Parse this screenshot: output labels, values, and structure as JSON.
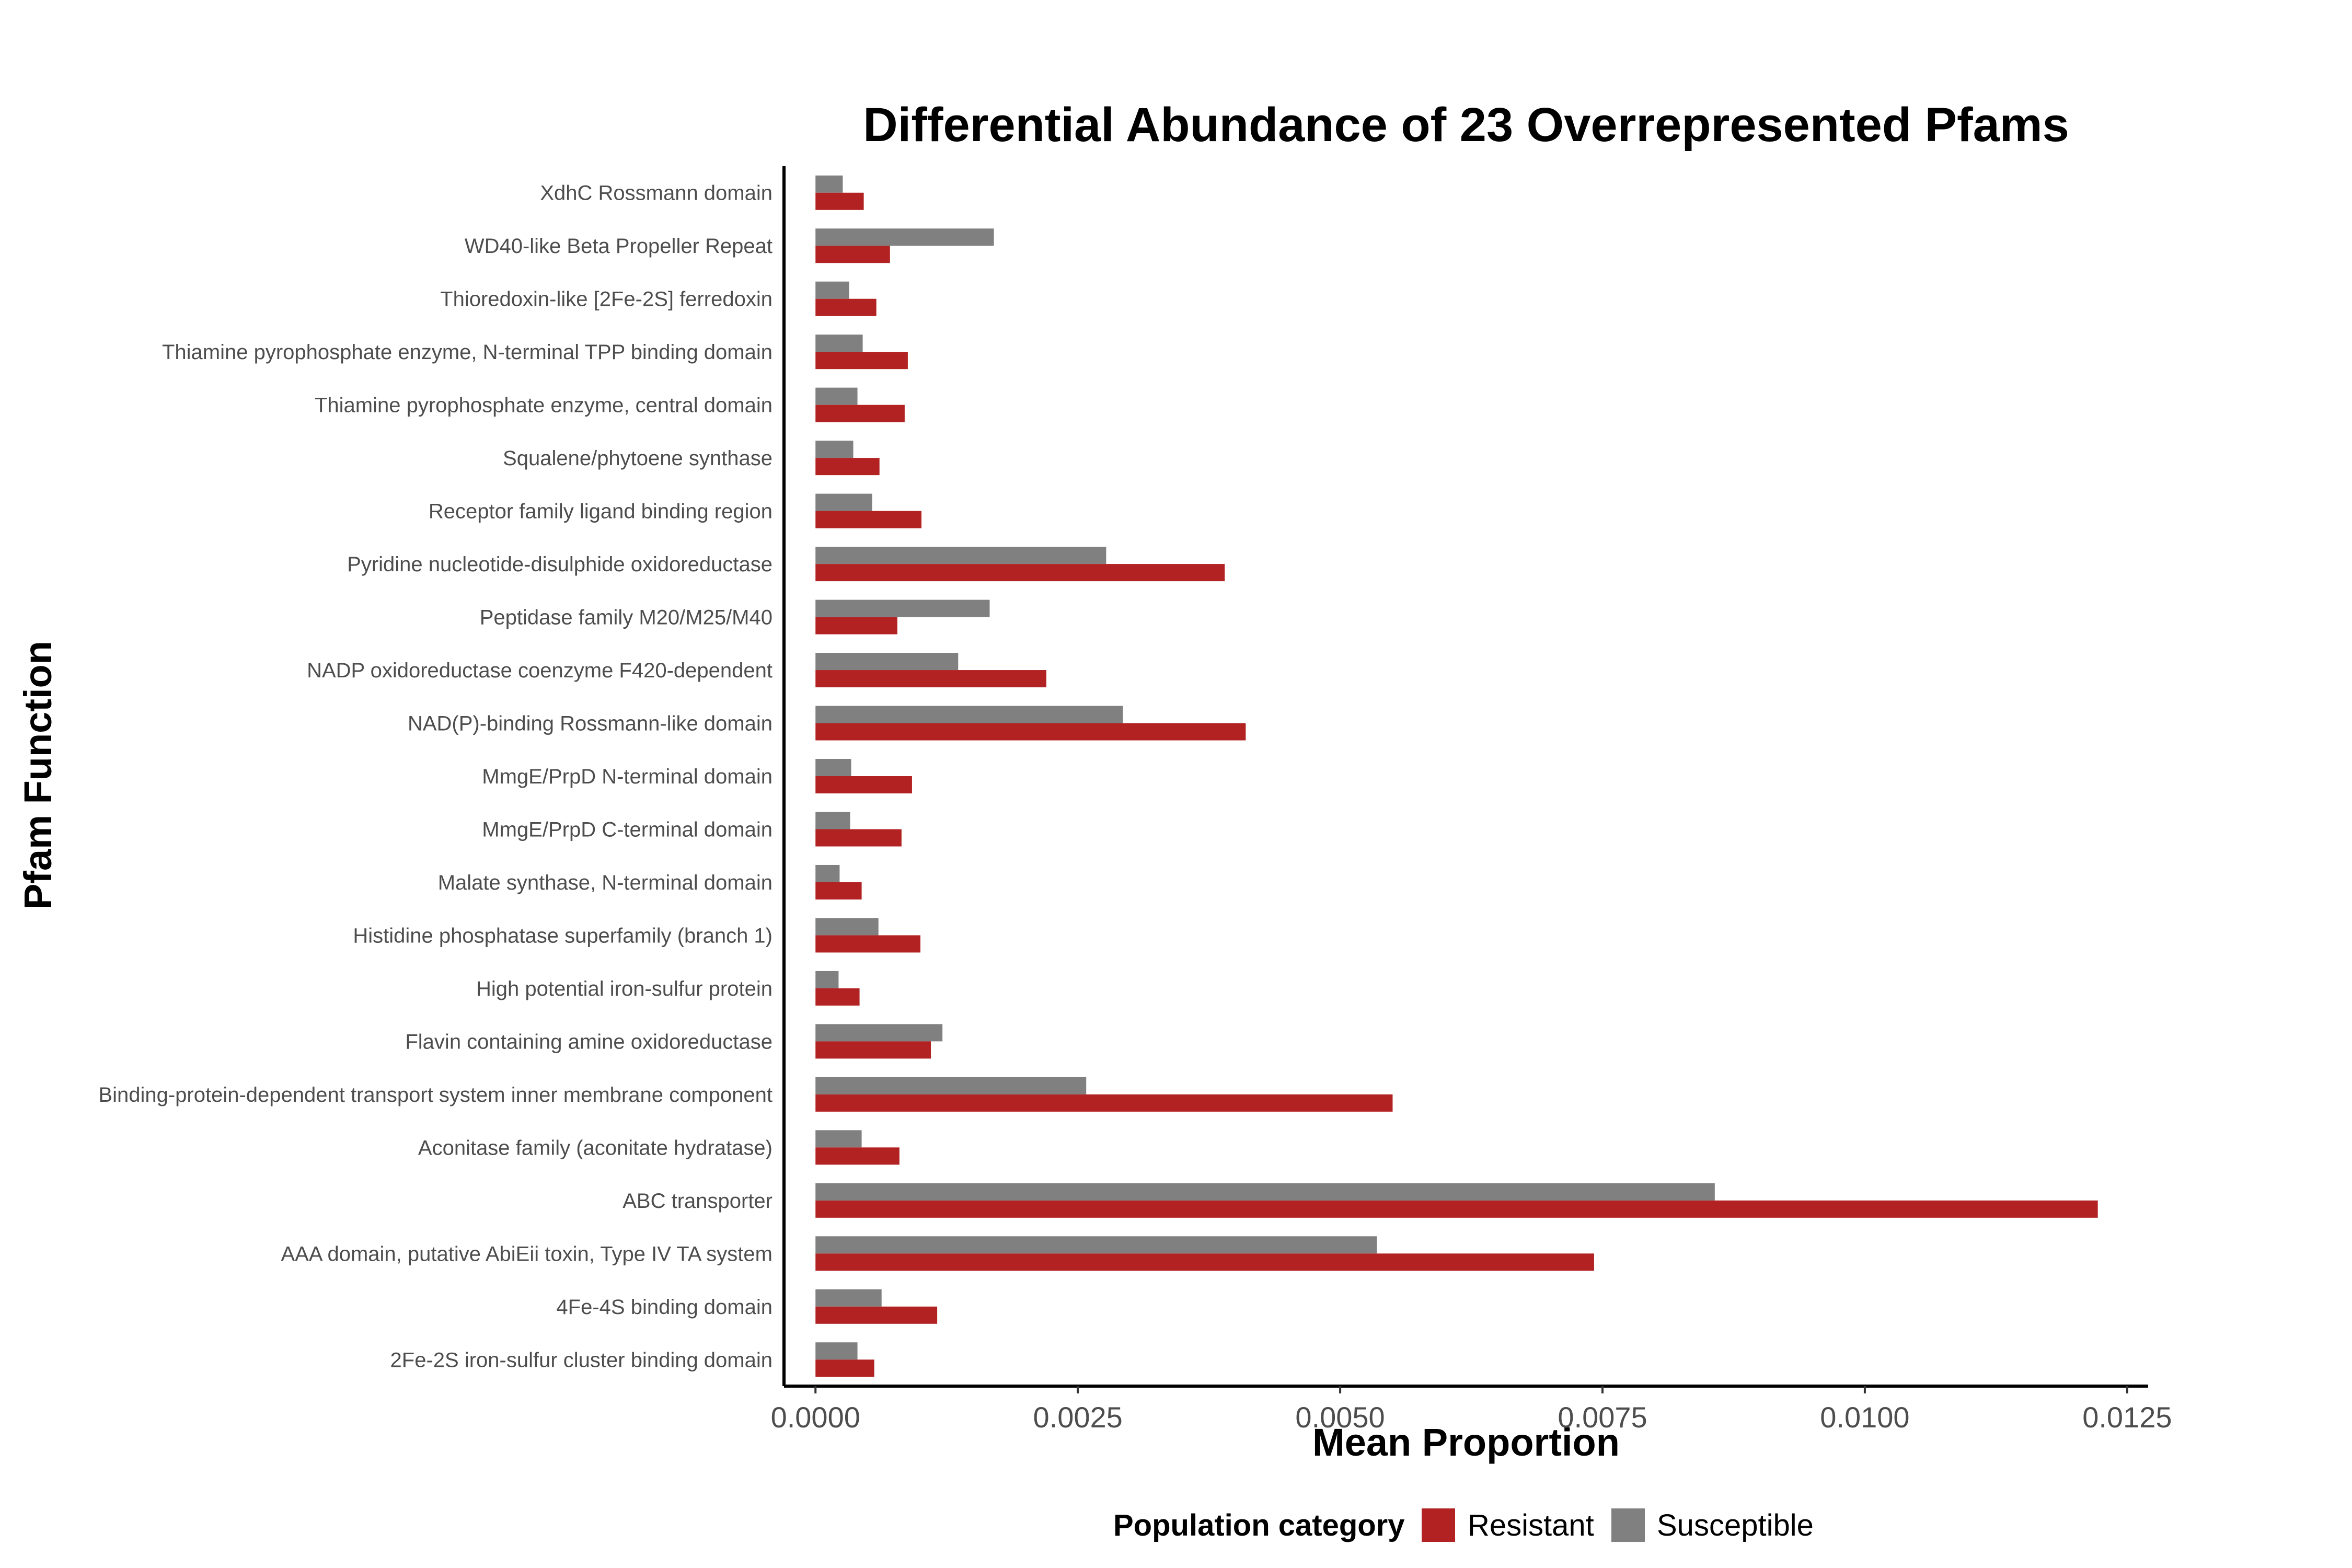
{
  "chart_data": {
    "type": "bar",
    "orientation": "horizontal",
    "title": "Differential Abundance of 23 Overrepresented Pfams",
    "xlabel": "Mean Proportion",
    "ylabel": "Pfam Function",
    "xlim": [
      -0.0003,
      0.0127
    ],
    "x_ticks": [
      0.0,
      0.0025,
      0.005,
      0.0075,
      0.01,
      0.0125
    ],
    "x_tick_labels": [
      "0.0000",
      "0.0025",
      "0.0050",
      "0.0075",
      "0.0100",
      "0.0125"
    ],
    "grid": false,
    "legend_position": "bottom",
    "legend_title": "Population category",
    "categories": [
      "XdhC Rossmann domain",
      "WD40-like Beta Propeller Repeat",
      "Thioredoxin-like [2Fe-2S] ferredoxin",
      "Thiamine pyrophosphate enzyme, N-terminal TPP binding domain",
      "Thiamine pyrophosphate enzyme, central domain",
      "Squalene/phytoene synthase",
      "Receptor family ligand binding region",
      "Pyridine nucleotide-disulphide oxidoreductase",
      "Peptidase family M20/M25/M40",
      "NADP oxidoreductase coenzyme F420-dependent",
      "NAD(P)-binding Rossmann-like domain",
      "MmgE/PrpD N-terminal domain",
      "MmgE/PrpD C-terminal domain",
      "Malate synthase, N-terminal domain",
      "Histidine phosphatase superfamily (branch 1)",
      "High potential iron-sulfur protein",
      "Flavin containing amine oxidoreductase",
      "Binding-protein-dependent transport system inner membrane component",
      "Aconitase family (aconitate hydratase)",
      "ABC transporter",
      "AAA domain, putative AbiEii toxin, Type IV TA system",
      "4Fe-4S binding domain",
      "2Fe-2S iron-sulfur cluster binding domain"
    ],
    "series": [
      {
        "name": "Resistant",
        "color": "#b22222",
        "values": [
          0.00046,
          0.00071,
          0.00058,
          0.00088,
          0.00085,
          0.00061,
          0.00101,
          0.0039,
          0.00078,
          0.0022,
          0.0041,
          0.00092,
          0.00082,
          0.00044,
          0.001,
          0.00042,
          0.0011,
          0.0055,
          0.0008,
          0.01222,
          0.00742,
          0.00116,
          0.00056
        ]
      },
      {
        "name": "Susceptible",
        "color": "#808080",
        "values": [
          0.00026,
          0.0017,
          0.00032,
          0.00045,
          0.0004,
          0.00036,
          0.00054,
          0.00277,
          0.00166,
          0.00136,
          0.00293,
          0.00034,
          0.00033,
          0.00023,
          0.0006,
          0.00022,
          0.00121,
          0.00258,
          0.00044,
          0.00857,
          0.00535,
          0.00063,
          0.0004
        ]
      }
    ]
  }
}
